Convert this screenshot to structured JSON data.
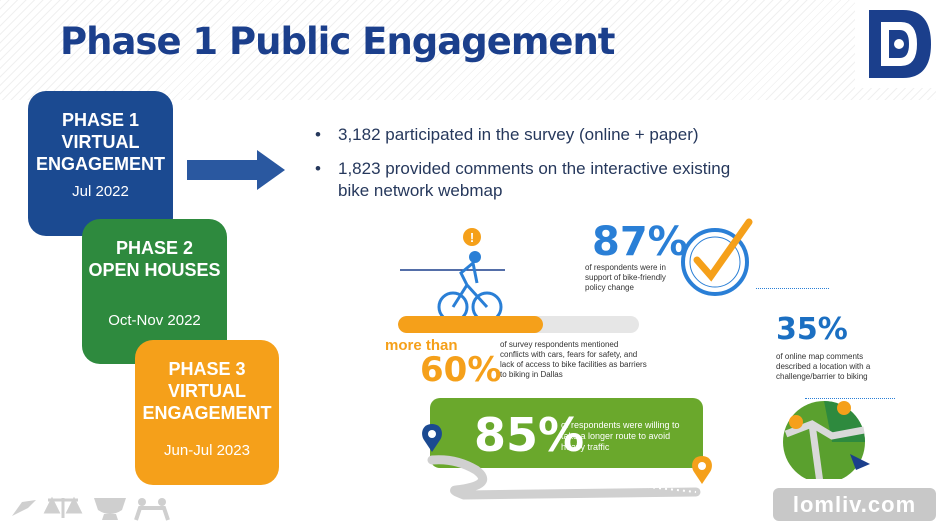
{
  "slide": {
    "title": "Phase 1 Public Engagement"
  },
  "phases": [
    {
      "name": "PHASE 1\nVIRTUAL\nENGAGEMENT",
      "date": "Jul 2022",
      "color": "#1b4a91"
    },
    {
      "name": "PHASE 2\nOPEN HOUSES",
      "date": "Oct-Nov 2022",
      "color": "#2e8a3e"
    },
    {
      "name": "PHASE 3\nVIRTUAL\nENGAGEMENT",
      "date": "Jun-Jul 2023",
      "color": "#f5a01a"
    }
  ],
  "bullets": [
    "3,182 participated in the survey (online + paper)",
    "1,823 provided comments on the interactive existing bike network webmap"
  ],
  "stats": {
    "s87": {
      "value": "87%",
      "desc": "of respondents were in support of bike-friendly policy change"
    },
    "s60": {
      "prefix": "more than",
      "value": "60%",
      "desc": "of survey respondents mentioned conflicts with cars, fears for safety, and lack of access to bike facilities as barriers to biking in Dallas",
      "fill": 0.6
    },
    "s35": {
      "value": "35%",
      "desc": "of online map comments described a location with a challenge/barrier to biking"
    },
    "s85": {
      "value": "85%",
      "desc": "of respondents were willing to take a longer route to avoid heavy traffic"
    }
  },
  "watermark": {
    "text": "lomliv.com"
  },
  "colors": {
    "navy": "#1b3f8c",
    "green": "#2e8a3e",
    "lime": "#6aa82c",
    "orange": "#f5a01a",
    "blue": "#2a7fd6"
  }
}
